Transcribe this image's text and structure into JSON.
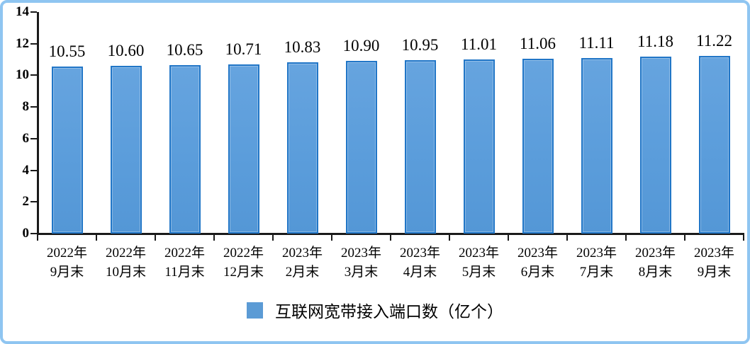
{
  "chart_data": {
    "type": "bar",
    "legend": "互联网宽带接入端口数（亿个）",
    "legend_position": "bottom",
    "grid": false,
    "categories": [
      [
        "2022年",
        "9月末"
      ],
      [
        "2022年",
        "10月末"
      ],
      [
        "2022年",
        "11月末"
      ],
      [
        "2022年",
        "12月末"
      ],
      [
        "2023年",
        "2月末"
      ],
      [
        "2023年",
        "3月末"
      ],
      [
        "2023年",
        "4月末"
      ],
      [
        "2023年",
        "5月末"
      ],
      [
        "2023年",
        "6月末"
      ],
      [
        "2023年",
        "7月末"
      ],
      [
        "2023年",
        "8月末"
      ],
      [
        "2023年",
        "9月末"
      ]
    ],
    "values": [
      10.55,
      10.6,
      10.65,
      10.71,
      10.83,
      10.9,
      10.95,
      11.01,
      11.06,
      11.11,
      11.18,
      11.22
    ],
    "value_labels": [
      "10.55",
      "10.60",
      "10.65",
      "10.71",
      "10.83",
      "10.90",
      "10.95",
      "11.01",
      "11.06",
      "11.11",
      "11.18",
      "11.22"
    ],
    "y_ticks": [
      0,
      2,
      4,
      6,
      8,
      10,
      12,
      14
    ],
    "ylim": [
      0,
      14
    ],
    "xlabel": "",
    "ylabel": "",
    "colors": {
      "bar_fill": "#5B9DDB",
      "bar_border": "#2176C7",
      "legend_swatch": "#5B9BD5",
      "axis": "#1a1a1a",
      "frame_border": "#8FC5F1",
      "label_text": "#000000"
    }
  }
}
